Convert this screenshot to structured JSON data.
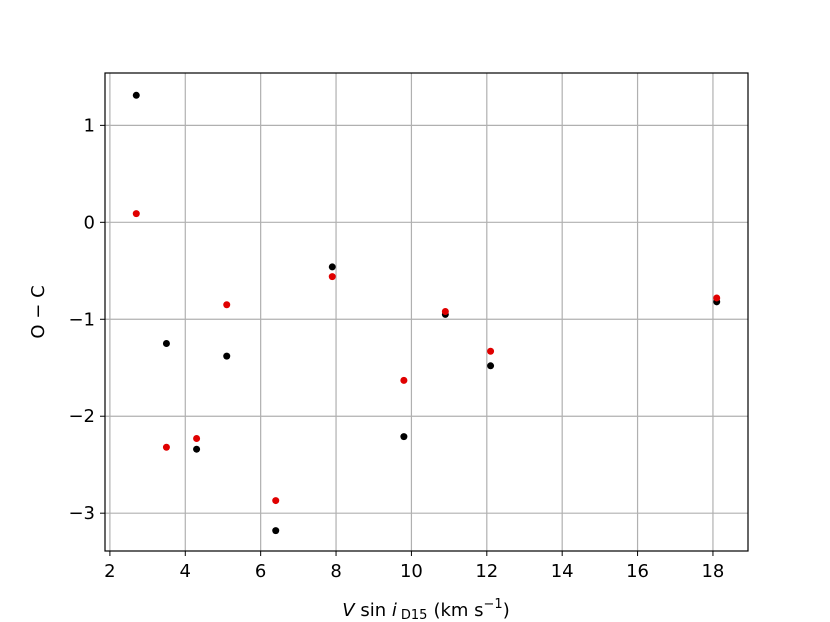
{
  "chart_data": {
    "type": "scatter",
    "xlabel": {
      "var": "V",
      "func": "sin",
      "ivar": "i",
      "sub": "D15",
      "unit": "(km s",
      "exp": "−1",
      "close": ")"
    },
    "ylabel": "O − C",
    "x": [
      2.7,
      3.5,
      4.3,
      5.1,
      6.4,
      7.9,
      9.8,
      10.9,
      12.1,
      18.1
    ],
    "series": [
      {
        "color": "#000000",
        "values": [
          1.31,
          -1.25,
          -2.34,
          -1.38,
          -3.18,
          -0.46,
          -2.21,
          -0.95,
          -1.48,
          -0.82
        ]
      },
      {
        "color": "#e00000",
        "values": [
          0.09,
          -2.32,
          -2.23,
          -0.85,
          -2.87,
          -0.56,
          -1.63,
          -0.92,
          -1.33,
          -0.78
        ]
      }
    ],
    "xlim": [
      1.87,
      18.93
    ],
    "ylim": [
      -3.39,
      1.54
    ],
    "xticks": [
      2,
      4,
      6,
      8,
      10,
      12,
      14,
      16,
      18
    ],
    "yticks": [
      {
        "value": -3,
        "label": "−3"
      },
      {
        "value": -2,
        "label": "−2"
      },
      {
        "value": -1,
        "label": "−1"
      },
      0,
      1
    ],
    "grid": true
  }
}
